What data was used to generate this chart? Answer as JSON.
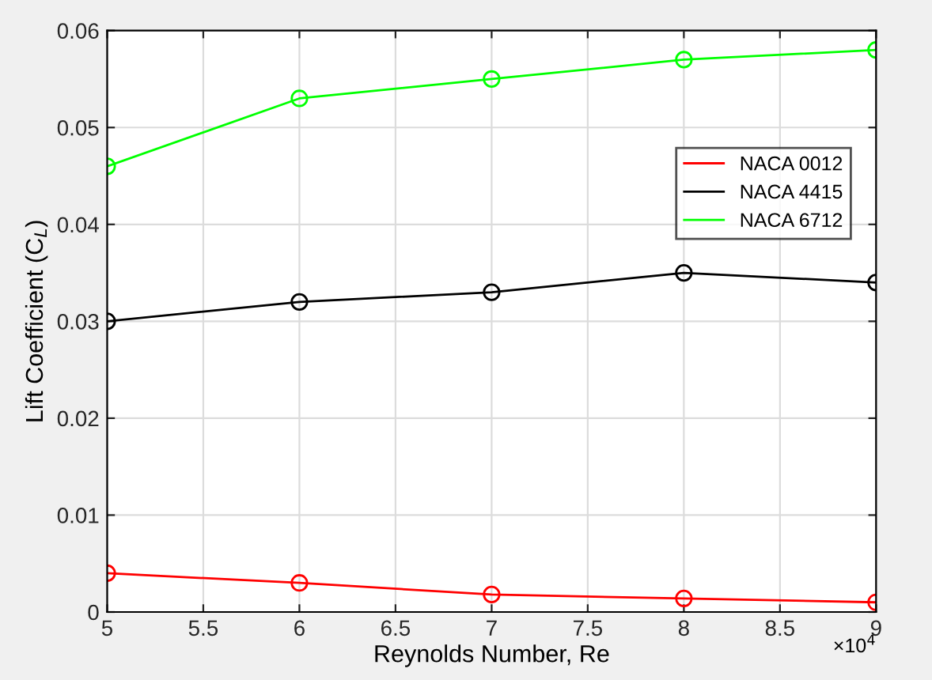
{
  "chart_data": {
    "type": "line",
    "xlabel": "Reynolds Number, Re",
    "ylabel": "Lift Coefficient (C$_{L}$)",
    "x": [
      5,
      6,
      7,
      8,
      9
    ],
    "series": [
      {
        "name": "NACA 0012",
        "color": "#ff0000",
        "values": [
          0.004,
          0.003,
          0.0018,
          0.0014,
          0.001
        ]
      },
      {
        "name": "NACA 4415",
        "color": "#000000",
        "values": [
          0.03,
          0.032,
          0.033,
          0.035,
          0.034
        ]
      },
      {
        "name": "NACA 6712",
        "color": "#00ff00",
        "values": [
          0.046,
          0.053,
          0.055,
          0.057,
          0.058
        ]
      }
    ],
    "xlim": [
      5,
      9
    ],
    "xticks": [
      5,
      5.5,
      6,
      6.5,
      7,
      7.5,
      8,
      8.5,
      9
    ],
    "ylim": [
      0,
      0.06
    ],
    "yticks": [
      0,
      0.01,
      0.02,
      0.03,
      0.04,
      0.05,
      0.06
    ],
    "annotations": [
      "×10$^{4}$"
    ],
    "grid": true,
    "legend": "right",
    "marker": "circle",
    "line_style": "solid"
  }
}
